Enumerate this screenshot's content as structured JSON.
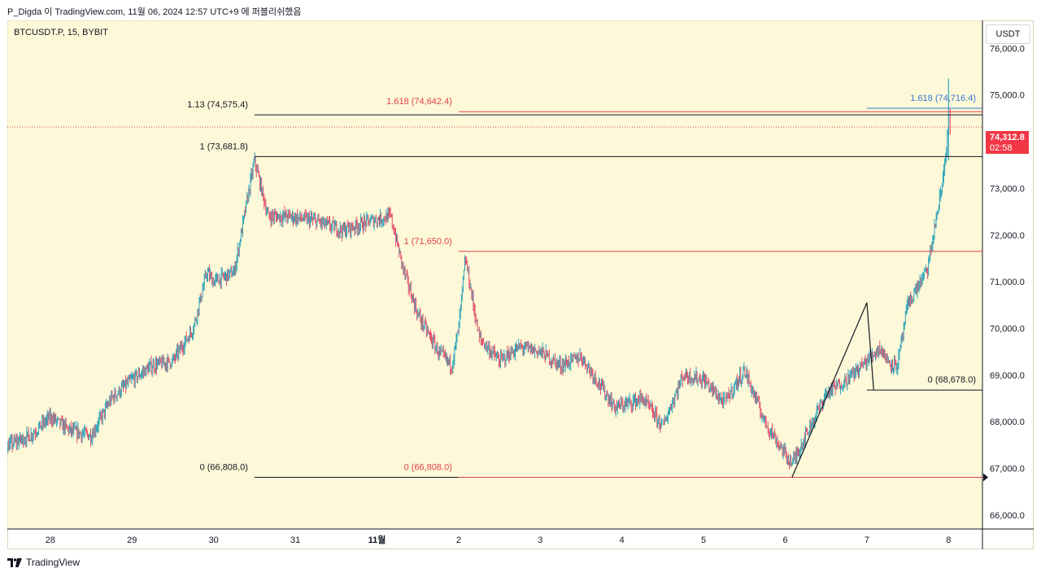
{
  "header": {
    "caption": "P_Digda 이 TradingView.com, 11월 06, 2024 12:57 UTC+9 에 퍼블리쉬했음"
  },
  "footer": {
    "brand": "TradingView",
    "logo_icon": "tradingview-logo-icon"
  },
  "currency_label": "USDT",
  "last_price": {
    "value": "74,312.8",
    "countdown": "02:58",
    "color": "#f23645"
  },
  "colors": {
    "background": "#fdf8d8",
    "up_candle": "#2aa3b8",
    "down_candle": "#e0506a",
    "fib_black": "#131722",
    "fib_red": "#e04050",
    "fib_blue": "#3a78d6"
  },
  "chart_data": {
    "type": "candlestick",
    "symbol_label": "BTCUSDT.P, 15, BYBIT",
    "x_ticks": [
      "28",
      "29",
      "30",
      "31",
      "11월",
      "2",
      "3",
      "4",
      "5",
      "6",
      "7",
      "8"
    ],
    "y_ticks": [
      "76,000.0",
      "75,000.0",
      "74,000.0",
      "73,000.0",
      "72,000.0",
      "71,000.0",
      "70,000.0",
      "69,000.0",
      "68,000.0",
      "67,000.0",
      "66,000.0"
    ],
    "ylim": [
      65700,
      76600
    ],
    "path_points": [
      [
        "10-27 00:00",
        67100
      ],
      [
        "10-27 06:00",
        67000
      ],
      [
        "10-27 12:00",
        67500
      ],
      [
        "10-27 18:00",
        67700
      ],
      [
        "10-28 00:00",
        68100
      ],
      [
        "10-28 06:00",
        67800
      ],
      [
        "10-28 12:00",
        67700
      ],
      [
        "10-28 18:00",
        68500
      ],
      [
        "10-29 00:00",
        68900
      ],
      [
        "10-29 06:00",
        69200
      ],
      [
        "10-29 12:00",
        69300
      ],
      [
        "10-29 18:00",
        70000
      ],
      [
        "10-29 22:00",
        71200
      ],
      [
        "10-30 00:00",
        71000
      ],
      [
        "10-30 06:00",
        71200
      ],
      [
        "10-30 10:00",
        72800
      ],
      [
        "10-30 12:00",
        73600
      ],
      [
        "10-30 16:00",
        72400
      ],
      [
        "10-30 22:00",
        72400
      ],
      [
        "10-31 06:00",
        72300
      ],
      [
        "10-31 14:00",
        72100
      ],
      [
        "10-31 22:00",
        72300
      ],
      [
        "11-01 04:00",
        72400
      ],
      [
        "11-01 08:00",
        71200
      ],
      [
        "11-01 12:00",
        70300
      ],
      [
        "11-01 18:00",
        69500
      ],
      [
        "11-01 22:00",
        69200
      ],
      [
        "11-02 00:00",
        70000
      ],
      [
        "11-02 02:00",
        71500
      ],
      [
        "11-02 06:00",
        69800
      ],
      [
        "11-02 12:00",
        69300
      ],
      [
        "11-02 18:00",
        69600
      ],
      [
        "11-03 00:00",
        69500
      ],
      [
        "11-03 06:00",
        69200
      ],
      [
        "11-03 12:00",
        69400
      ],
      [
        "11-03 22:00",
        68300
      ],
      [
        "11-04 06:00",
        68500
      ],
      [
        "11-04 12:00",
        67900
      ],
      [
        "11-04 18:00",
        69000
      ],
      [
        "11-05 00:00",
        68900
      ],
      [
        "11-05 06:00",
        68400
      ],
      [
        "11-05 12:00",
        69100
      ],
      [
        "11-05 18:00",
        68000
      ],
      [
        "11-06 00:00",
        67300
      ],
      [
        "11-06 02:00",
        67100
      ],
      [
        "11-06 06:00",
        67700
      ],
      [
        "11-06 12:00",
        68600
      ],
      [
        "11-06 18:00",
        68900
      ],
      [
        "11-07 00:00",
        69300
      ],
      [
        "11-07 04:00",
        69600
      ],
      [
        "11-07 06:00",
        69300
      ],
      [
        "11-07 09:00",
        69200
      ],
      [
        "11-07 12:00",
        70500
      ],
      [
        "11-07 18:00",
        71300
      ],
      [
        "11-07 20:00",
        72200
      ],
      [
        "11-07 22:00",
        73000
      ],
      [
        "11-08 00:00",
        74300
      ]
    ],
    "fib_levels": [
      {
        "label": "1.13 (74,575.4)",
        "price": 74575.4,
        "color": "fib_black",
        "from": "10-30 12:00"
      },
      {
        "label": "1.618 (74,642.4)",
        "price": 74642.4,
        "color": "fib_red",
        "from": "11-02 00:00"
      },
      {
        "label": "1.618 (74,716.4)",
        "price": 74716.4,
        "color": "fib_blue",
        "from": "11-07 00:00"
      },
      {
        "label": "1 (73,681.8)",
        "price": 73681.8,
        "color": "fib_black",
        "from": "10-30 12:00"
      },
      {
        "label": "1 (71,650.0)",
        "price": 71650.0,
        "color": "fib_red",
        "from": "11-02 00:00"
      },
      {
        "label": "0 (68,678.0)",
        "price": 68678.0,
        "color": "fib_black",
        "from": "11-07 00:00"
      },
      {
        "label": "0 (66,808.0)",
        "price": 66808.0,
        "color": "fib_black",
        "from": "10-30 12:00"
      },
      {
        "label": "0 (66,808.0)",
        "price": 66808.0,
        "color": "fib_red",
        "from": "11-02 00:00"
      }
    ],
    "trend_lines": [
      [
        [
          "11-06 02:00",
          66808
        ],
        [
          "11-07 00:00",
          70550
        ]
      ],
      [
        [
          "11-07 00:00",
          70550
        ],
        [
          "11-07 02:00",
          68678
        ]
      ]
    ],
    "last_price_line": 74312.8
  }
}
